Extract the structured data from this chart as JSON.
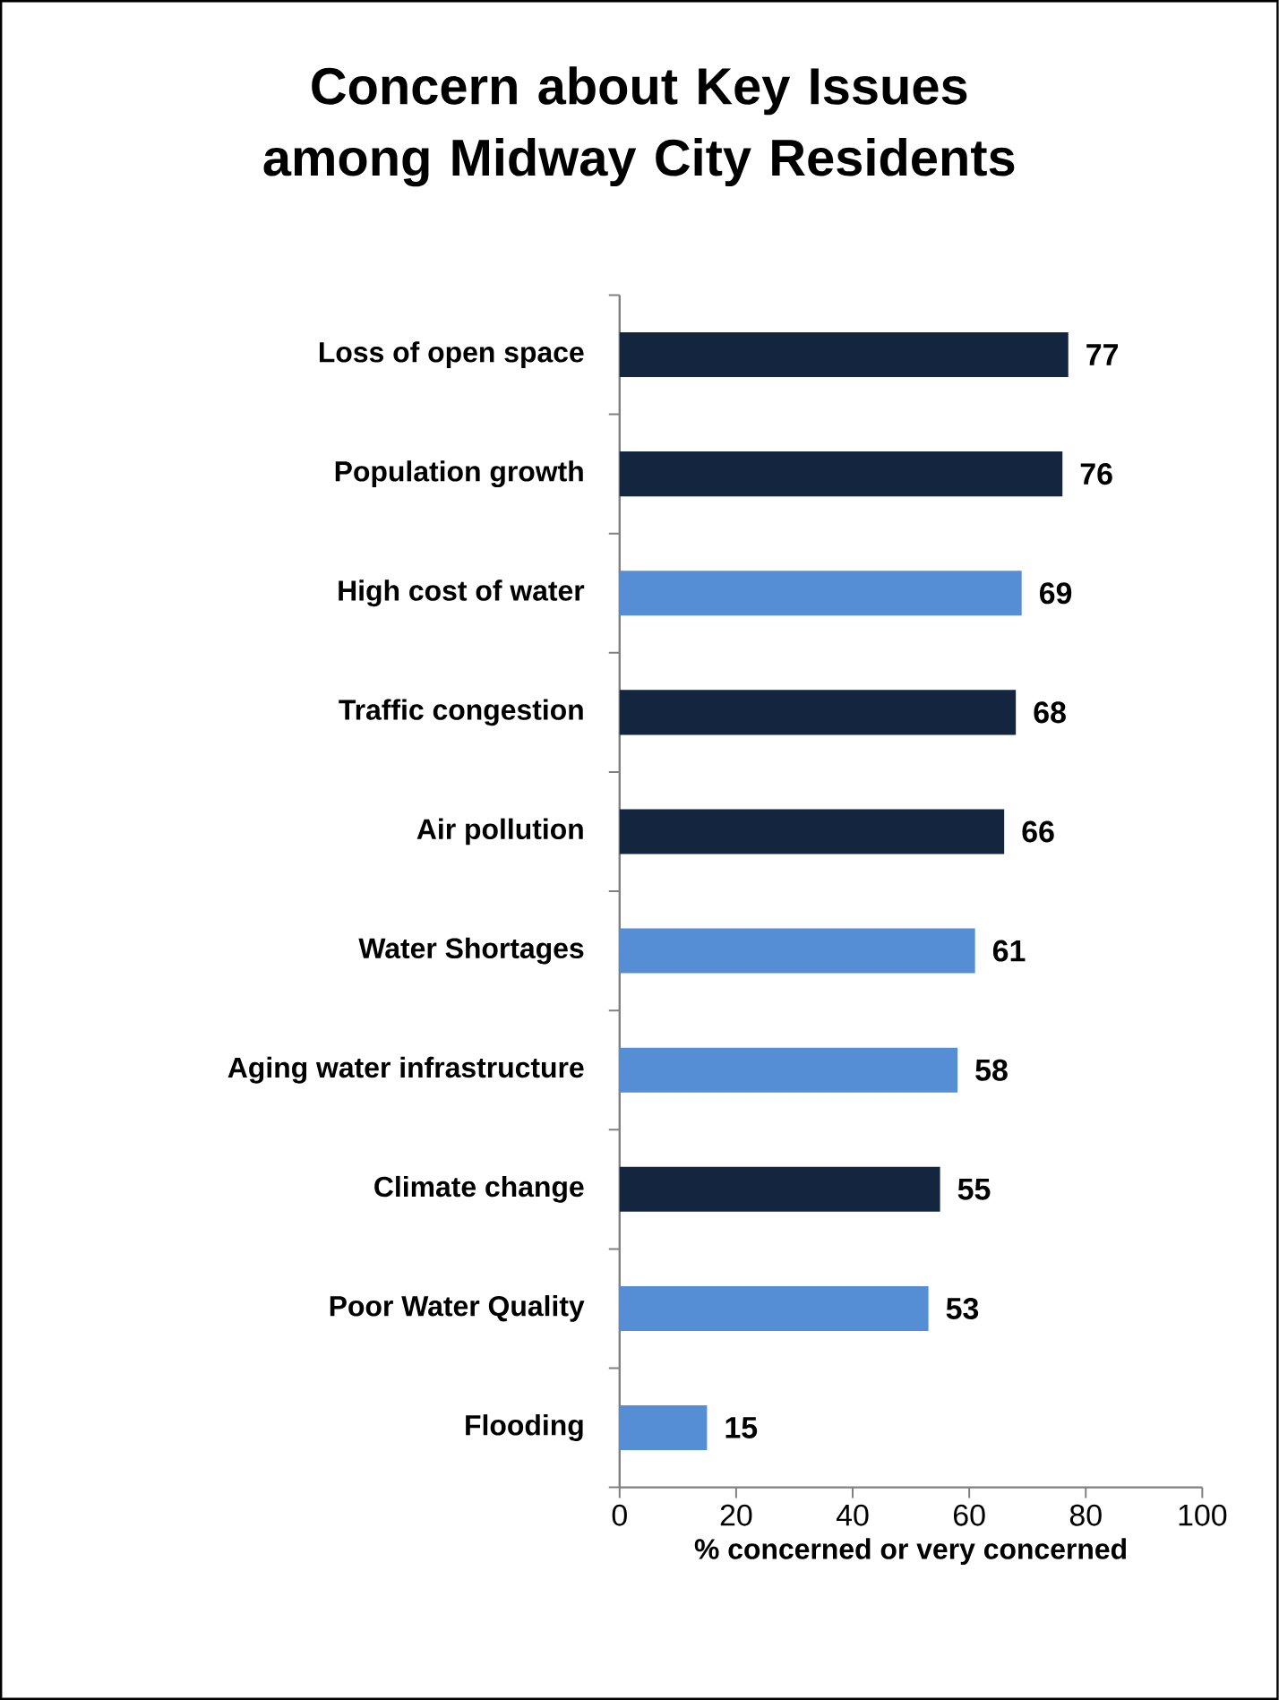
{
  "chart_data": {
    "type": "bar",
    "orientation": "horizontal",
    "title": "Concern about Key Issues among Midway City Residents",
    "xlabel": "% concerned or very concerned",
    "categories": [
      "Loss of open space",
      "Population growth",
      "High cost of water",
      "Traffic congestion",
      "Air pollution",
      "Water Shortages",
      "Aging water infrastructure",
      "Climate change",
      "Poor Water Quality",
      "Flooding"
    ],
    "values": [
      77,
      76,
      69,
      68,
      66,
      61,
      58,
      55,
      53,
      15
    ],
    "colors": [
      "#13253f",
      "#13253f",
      "#558ed5",
      "#13253f",
      "#13253f",
      "#558ed5",
      "#558ed5",
      "#13253f",
      "#558ed5",
      "#558ed5"
    ],
    "xlim": [
      0,
      100
    ],
    "xticks": [
      0,
      20,
      40,
      60,
      80,
      100
    ],
    "data_labels": true
  }
}
